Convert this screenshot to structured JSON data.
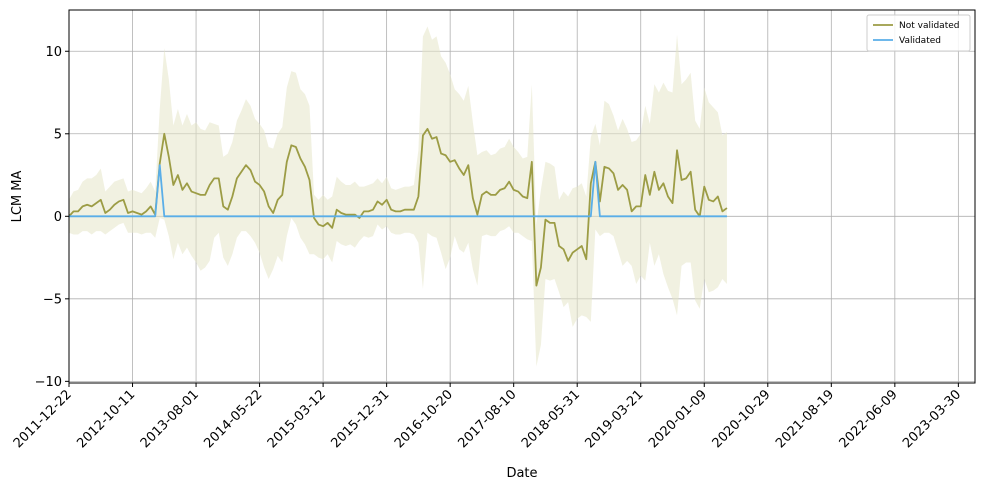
{
  "chart_data": {
    "type": "line",
    "xlabel": "Date",
    "ylabel": "LCM MA",
    "x_axis": "date",
    "xlim": [
      "2011-12-22",
      "2023-06-15"
    ],
    "ylim": [
      -10.1,
      12.5
    ],
    "yticks": [
      -10,
      -5,
      0,
      5,
      10
    ],
    "xticks": [
      "2011-12-22",
      "2012-10-11",
      "2013-08-01",
      "2014-05-22",
      "2015-03-12",
      "2015-12-31",
      "2016-10-20",
      "2017-08-10",
      "2018-05-31",
      "2019-03-21",
      "2020-01-09",
      "2020-10-29",
      "2021-08-19",
      "2022-06-09",
      "2023-03-30"
    ],
    "grid": true,
    "legend_position": "top-right",
    "colors": {
      "not_validated": "#9c9c45",
      "band": "#e6e6c8",
      "validated": "#5aaee8"
    },
    "series": [
      {
        "name": "Not validated",
        "color": "#9c9c45",
        "points": [
          [
            "2011-12-22",
            0.0
          ],
          [
            "2012-01-12",
            0.3
          ],
          [
            "2012-02-02",
            0.3
          ],
          [
            "2012-02-23",
            0.6
          ],
          [
            "2012-03-15",
            0.7
          ],
          [
            "2012-04-05",
            0.6
          ],
          [
            "2012-04-26",
            0.8
          ],
          [
            "2012-05-17",
            1.0
          ],
          [
            "2012-06-07",
            0.2
          ],
          [
            "2012-06-28",
            0.4
          ],
          [
            "2012-07-19",
            0.7
          ],
          [
            "2012-08-09",
            0.9
          ],
          [
            "2012-08-30",
            1.0
          ],
          [
            "2012-09-20",
            0.2
          ],
          [
            "2012-10-11",
            0.3
          ],
          [
            "2012-11-01",
            0.2
          ],
          [
            "2012-11-22",
            0.1
          ],
          [
            "2012-12-13",
            0.3
          ],
          [
            "2013-01-03",
            0.6
          ],
          [
            "2013-01-24",
            0.1
          ],
          [
            "2013-02-14",
            3.2
          ],
          [
            "2013-03-07",
            5.0
          ],
          [
            "2013-03-28",
            3.6
          ],
          [
            "2013-04-18",
            1.9
          ],
          [
            "2013-05-09",
            2.5
          ],
          [
            "2013-05-30",
            1.6
          ],
          [
            "2013-06-20",
            2.0
          ],
          [
            "2013-07-11",
            1.5
          ],
          [
            "2013-08-01",
            1.4
          ],
          [
            "2013-08-22",
            1.3
          ],
          [
            "2013-09-12",
            1.3
          ],
          [
            "2013-10-03",
            1.9
          ],
          [
            "2013-10-24",
            2.3
          ],
          [
            "2013-11-14",
            2.3
          ],
          [
            "2013-12-05",
            0.6
          ],
          [
            "2013-12-26",
            0.4
          ],
          [
            "2014-01-16",
            1.2
          ],
          [
            "2014-02-06",
            2.3
          ],
          [
            "2014-02-27",
            2.7
          ],
          [
            "2014-03-20",
            3.1
          ],
          [
            "2014-04-10",
            2.8
          ],
          [
            "2014-05-01",
            2.1
          ],
          [
            "2014-05-22",
            1.9
          ],
          [
            "2014-06-12",
            1.5
          ],
          [
            "2014-07-03",
            0.6
          ],
          [
            "2014-07-24",
            0.2
          ],
          [
            "2014-08-14",
            1.0
          ],
          [
            "2014-09-04",
            1.3
          ],
          [
            "2014-09-25",
            3.3
          ],
          [
            "2014-10-16",
            4.3
          ],
          [
            "2014-11-06",
            4.2
          ],
          [
            "2014-11-27",
            3.5
          ],
          [
            "2014-12-18",
            3.0
          ],
          [
            "2015-01-08",
            2.2
          ],
          [
            "2015-01-29",
            -0.1
          ],
          [
            "2015-02-19",
            -0.5
          ],
          [
            "2015-03-12",
            -0.6
          ],
          [
            "2015-04-02",
            -0.4
          ],
          [
            "2015-04-23",
            -0.7
          ],
          [
            "2015-05-14",
            0.4
          ],
          [
            "2015-06-04",
            0.2
          ],
          [
            "2015-06-25",
            0.1
          ],
          [
            "2015-07-16",
            0.1
          ],
          [
            "2015-08-06",
            0.1
          ],
          [
            "2015-08-27",
            -0.1
          ],
          [
            "2015-09-17",
            0.3
          ],
          [
            "2015-10-08",
            0.3
          ],
          [
            "2015-10-29",
            0.4
          ],
          [
            "2015-11-19",
            0.9
          ],
          [
            "2015-12-10",
            0.7
          ],
          [
            "2015-12-31",
            1.0
          ],
          [
            "2016-01-21",
            0.4
          ],
          [
            "2016-02-11",
            0.3
          ],
          [
            "2016-03-03",
            0.3
          ],
          [
            "2016-03-24",
            0.4
          ],
          [
            "2016-04-14",
            0.4
          ],
          [
            "2016-05-05",
            0.4
          ],
          [
            "2016-05-26",
            1.2
          ],
          [
            "2016-06-16",
            4.9
          ],
          [
            "2016-07-07",
            5.3
          ],
          [
            "2016-07-28",
            4.7
          ],
          [
            "2016-08-18",
            4.8
          ],
          [
            "2016-09-08",
            3.8
          ],
          [
            "2016-09-29",
            3.7
          ],
          [
            "2016-10-20",
            3.3
          ],
          [
            "2016-11-10",
            3.4
          ],
          [
            "2016-12-01",
            2.9
          ],
          [
            "2016-12-22",
            2.5
          ],
          [
            "2017-01-12",
            3.1
          ],
          [
            "2017-02-02",
            1.1
          ],
          [
            "2017-02-23",
            0.1
          ],
          [
            "2017-03-16",
            1.3
          ],
          [
            "2017-04-06",
            1.5
          ],
          [
            "2017-04-27",
            1.3
          ],
          [
            "2017-05-18",
            1.3
          ],
          [
            "2017-06-08",
            1.6
          ],
          [
            "2017-06-29",
            1.7
          ],
          [
            "2017-07-20",
            2.1
          ],
          [
            "2017-08-10",
            1.6
          ],
          [
            "2017-08-31",
            1.5
          ],
          [
            "2017-09-21",
            1.2
          ],
          [
            "2017-10-12",
            1.1
          ],
          [
            "2017-11-02",
            3.3
          ],
          [
            "2017-11-23",
            -4.2
          ],
          [
            "2017-12-14",
            -3.1
          ],
          [
            "2018-01-04",
            -0.2
          ],
          [
            "2018-01-25",
            -0.4
          ],
          [
            "2018-02-15",
            -0.4
          ],
          [
            "2018-03-08",
            -1.8
          ],
          [
            "2018-03-29",
            -2.0
          ],
          [
            "2018-04-19",
            -2.7
          ],
          [
            "2018-05-10",
            -2.2
          ],
          [
            "2018-05-31",
            -2.0
          ],
          [
            "2018-06-21",
            -1.8
          ],
          [
            "2018-07-12",
            -2.6
          ],
          [
            "2018-08-02",
            2.0
          ],
          [
            "2018-08-23",
            3.3
          ],
          [
            "2018-09-13",
            0.9
          ],
          [
            "2018-10-04",
            3.0
          ],
          [
            "2018-10-25",
            2.9
          ],
          [
            "2018-11-15",
            2.6
          ],
          [
            "2018-12-06",
            1.6
          ],
          [
            "2018-12-27",
            1.9
          ],
          [
            "2019-01-17",
            1.6
          ],
          [
            "2019-02-07",
            0.3
          ],
          [
            "2019-02-28",
            0.6
          ],
          [
            "2019-03-21",
            0.6
          ],
          [
            "2019-04-11",
            2.5
          ],
          [
            "2019-05-02",
            1.3
          ],
          [
            "2019-05-23",
            2.7
          ],
          [
            "2019-06-13",
            1.6
          ],
          [
            "2019-07-04",
            2.0
          ],
          [
            "2019-07-25",
            1.2
          ],
          [
            "2019-08-15",
            0.8
          ],
          [
            "2019-09-05",
            4.0
          ],
          [
            "2019-09-26",
            2.2
          ],
          [
            "2019-10-17",
            2.3
          ],
          [
            "2019-11-07",
            2.7
          ],
          [
            "2019-11-28",
            0.4
          ],
          [
            "2019-12-19",
            0.0
          ],
          [
            "2020-01-09",
            1.8
          ],
          [
            "2020-01-30",
            1.0
          ],
          [
            "2020-02-20",
            0.9
          ],
          [
            "2020-03-12",
            1.2
          ],
          [
            "2020-04-02",
            0.3
          ],
          [
            "2020-04-23",
            0.5
          ]
        ]
      },
      {
        "name": "Validated",
        "color": "#5aaee8",
        "points": [
          [
            "2011-12-22",
            0.0
          ],
          [
            "2013-01-24",
            0.0
          ],
          [
            "2013-02-14",
            3.1
          ],
          [
            "2013-03-07",
            0.0
          ],
          [
            "2018-08-02",
            0.0
          ],
          [
            "2018-08-23",
            3.3
          ],
          [
            "2018-09-13",
            0.0
          ],
          [
            "2020-04-23",
            0.0
          ]
        ]
      }
    ],
    "band": {
      "series": "Not validated",
      "upper": [
        1.0,
        1.5,
        1.6,
        2.1,
        2.3,
        2.3,
        2.5,
        2.9,
        1.5,
        1.8,
        2.1,
        2.2,
        2.3,
        1.5,
        1.6,
        1.5,
        1.4,
        1.7,
        2.1,
        1.5,
        6.5,
        10.2,
        8.3,
        5.5,
        6.5,
        5.5,
        6.2,
        5.5,
        5.7,
        5.3,
        5.2,
        5.7,
        5.6,
        5.5,
        3.6,
        3.8,
        4.5,
        5.8,
        6.4,
        7.1,
        6.7,
        5.9,
        5.6,
        5.2,
        4.2,
        4.1,
        5.0,
        5.4,
        7.8,
        8.8,
        8.7,
        7.7,
        7.4,
        6.7,
        1.3,
        1.0,
        1.3,
        1.0,
        1.2,
        2.4,
        2.1,
        1.9,
        1.9,
        2.1,
        1.8,
        1.8,
        1.9,
        2.0,
        2.3,
        2.0,
        2.4,
        1.7,
        1.6,
        1.7,
        1.8,
        1.8,
        1.9,
        4.0,
        10.9,
        11.5,
        10.7,
        10.9,
        9.7,
        9.3,
        8.6,
        7.7,
        7.4,
        7.0,
        7.9,
        5.7,
        3.7,
        3.9,
        4.0,
        3.7,
        3.8,
        4.1,
        4.2,
        4.7,
        4.2,
        3.9,
        3.5,
        3.6,
        8.0,
        -0.5,
        1.6,
        3.3,
        3.2,
        3.0,
        1.0,
        1.5,
        1.2,
        1.7,
        1.8,
        2.0,
        1.2,
        4.8,
        5.6,
        4.3,
        7.0,
        6.8,
        6.1,
        5.2,
        5.9,
        5.3,
        4.5,
        4.6,
        5.0,
        6.7,
        5.6,
        8.0,
        7.5,
        8.1,
        7.6,
        7.5,
        11.0,
        8.0,
        8.3,
        8.7,
        5.8,
        5.3,
        7.8,
        6.9,
        6.6,
        6.3,
        4.9,
        5.1
      ],
      "lower": [
        -1.0,
        -1.1,
        -1.1,
        -0.9,
        -0.9,
        -1.1,
        -0.9,
        -0.9,
        -1.1,
        -0.9,
        -0.7,
        -0.5,
        -0.4,
        -1.0,
        -1.0,
        -1.0,
        -1.1,
        -1.0,
        -1.0,
        -1.3,
        -0.1,
        -0.2,
        -1.2,
        -2.6,
        -1.6,
        -2.3,
        -1.9,
        -2.4,
        -2.8,
        -3.3,
        -3.1,
        -2.7,
        -1.3,
        -1.0,
        -2.5,
        -3.0,
        -2.3,
        -1.3,
        -0.9,
        -0.9,
        -1.2,
        -1.6,
        -2.2,
        -3.1,
        -3.8,
        -3.2,
        -2.4,
        -2.8,
        -1.2,
        -0.1,
        -0.5,
        -1.3,
        -1.7,
        -2.3,
        -2.3,
        -2.5,
        -2.6,
        -2.3,
        -2.8,
        -1.5,
        -1.7,
        -1.8,
        -1.7,
        -1.9,
        -1.5,
        -1.2,
        -1.3,
        -1.2,
        -0.5,
        -0.8,
        -0.6,
        -1.0,
        -1.1,
        -1.1,
        -1.0,
        -1.0,
        -1.1,
        -1.6,
        -4.4,
        -1.0,
        -1.2,
        -1.3,
        -2.2,
        -3.2,
        -2.5,
        -1.2,
        -2.0,
        -2.2,
        -1.6,
        -3.2,
        -4.2,
        -1.2,
        -1.1,
        -1.2,
        -1.2,
        -0.9,
        -0.8,
        -0.6,
        -1.0,
        -1.0,
        -1.2,
        -1.4,
        -1.5,
        -9.1,
        -7.8,
        -3.8,
        -3.9,
        -3.8,
        -4.6,
        -5.5,
        -5.2,
        -6.7,
        -6.2,
        -6.0,
        -6.1,
        -6.4,
        -0.8,
        -1.2,
        -1.0,
        -1.0,
        -1.2,
        -2.1,
        -3.0,
        -2.7,
        -3.0,
        -4.1,
        -3.6,
        -3.9,
        -1.6,
        -3.0,
        -2.3,
        -3.5,
        -4.3,
        -5.0,
        -6.0,
        -3.0,
        -2.8,
        -2.8,
        -5.1,
        -5.6,
        -3.8,
        -4.6,
        -4.5,
        -4.3,
        -3.8,
        -4.1
      ]
    }
  }
}
